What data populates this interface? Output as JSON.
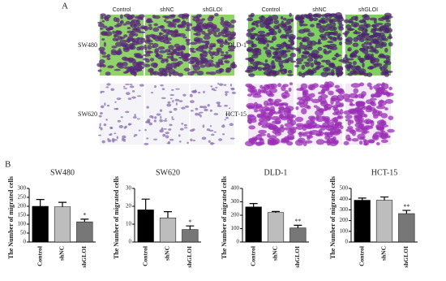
{
  "panel_a": {
    "label": "A",
    "left_columns": [
      "Control",
      "shNC",
      "shGLOI"
    ],
    "right_columns": [
      "Control",
      "shNC",
      "shGLOI"
    ],
    "left_rows": [
      "SW480",
      "SW620"
    ],
    "right_rows": [
      "DLD-1",
      "HCT-15"
    ]
  },
  "panel_b": {
    "label": "B"
  },
  "chart_data": [
    {
      "type": "bar",
      "title": "SW480",
      "ylabel": "The Number of migrated cells",
      "categories": [
        "Control",
        "shNC",
        "shGLOI"
      ],
      "values": [
        200,
        197,
        113
      ],
      "errors": [
        38,
        25,
        15
      ],
      "colors": [
        "#000000",
        "#bdbdbd",
        "#777777"
      ],
      "ylim": [
        0,
        300
      ],
      "yticks": [
        0,
        50,
        100,
        150,
        200,
        250,
        300
      ],
      "annotations": [
        {
          "category": "shGLOI",
          "text": "*"
        }
      ]
    },
    {
      "type": "bar",
      "title": "SW620",
      "ylabel": "The Number of migrated cells",
      "categories": [
        "Control",
        "shNC",
        "shGLOI"
      ],
      "values": [
        18,
        13.5,
        7
      ],
      "errors": [
        6,
        3.5,
        2
      ],
      "colors": [
        "#000000",
        "#bdbdbd",
        "#777777"
      ],
      "ylim": [
        0,
        30
      ],
      "yticks": [
        0,
        10,
        20,
        30
      ],
      "annotations": [
        {
          "category": "shGLOI",
          "text": "*"
        }
      ]
    },
    {
      "type": "bar",
      "title": "DLD-1",
      "ylabel": "The Number of migrated cells",
      "categories": [
        "Control",
        "shNC",
        "shGLOI"
      ],
      "values": [
        262,
        220,
        105
      ],
      "errors": [
        25,
        8,
        20
      ],
      "colors": [
        "#000000",
        "#bdbdbd",
        "#777777"
      ],
      "ylim": [
        0,
        400
      ],
      "yticks": [
        0,
        100,
        200,
        300,
        400
      ],
      "annotations": [
        {
          "category": "shGLOI",
          "text": "**"
        }
      ]
    },
    {
      "type": "bar",
      "title": "HCT-15",
      "ylabel": "The Number of migrated cells",
      "categories": [
        "Control",
        "shNC",
        "shGLOI"
      ],
      "values": [
        390,
        390,
        265
      ],
      "errors": [
        20,
        30,
        30
      ],
      "colors": [
        "#000000",
        "#bdbdbd",
        "#777777"
      ],
      "ylim": [
        0,
        500
      ],
      "yticks": [
        0,
        100,
        200,
        300,
        400,
        500
      ],
      "annotations": [
        {
          "category": "shGLOI",
          "text": "**"
        }
      ]
    }
  ]
}
